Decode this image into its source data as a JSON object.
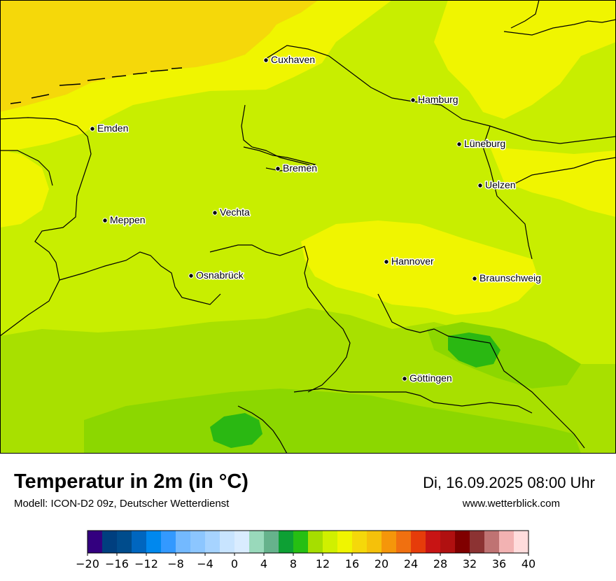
{
  "map": {
    "cities": [
      {
        "name": "Cuxhaven"
      },
      {
        "name": "Hamburg"
      },
      {
        "name": "Emden"
      },
      {
        "name": "Lüneburg"
      },
      {
        "name": "Bremen"
      },
      {
        "name": "Uelzen"
      },
      {
        "name": "Meppen"
      },
      {
        "name": "Vechta"
      },
      {
        "name": "Hannover"
      },
      {
        "name": "Osnabrück"
      },
      {
        "name": "Braunschweig"
      },
      {
        "name": "Göttingen"
      }
    ],
    "colors": {
      "warm_yellow": "#f5d80a",
      "yellow": "#f0f500",
      "light_lime": "#d0f000",
      "lime": "#c8ee00",
      "green_yellow": "#a8e000",
      "green": "#8cd700",
      "dark_green": "#2ab812",
      "border": "#000000"
    }
  },
  "title": "Temperatur in 2m (in °C)",
  "subtitle": "Modell: ICON-D2 09z, Deutscher Wetterdienst",
  "datetime": "Di, 16.09.2025 08:00 Uhr",
  "website": "www.wetterblick.com",
  "legend": {
    "ticks": [
      "−20",
      "−16",
      "−12",
      "−8",
      "−4",
      "0",
      "4",
      "8",
      "12",
      "16",
      "20",
      "24",
      "28",
      "32",
      "36",
      "40"
    ],
    "colors": [
      "#33007f",
      "#003f7f",
      "#004c8c",
      "#0066bf",
      "#0088ee",
      "#3399ff",
      "#73b9ff",
      "#8cc6ff",
      "#a6d3ff",
      "#c8e4ff",
      "#d9ecff",
      "#99d9bb",
      "#66b28c",
      "#0da034",
      "#26bf13",
      "#a6de00",
      "#d0f000",
      "#f0f500",
      "#f5d80a",
      "#f5c10a",
      "#f5960a",
      "#f07010",
      "#e63c0a",
      "#c81414",
      "#b01010",
      "#800000",
      "#8c3333",
      "#bf7373",
      "#f2b2b2",
      "#ffdcdc"
    ]
  }
}
